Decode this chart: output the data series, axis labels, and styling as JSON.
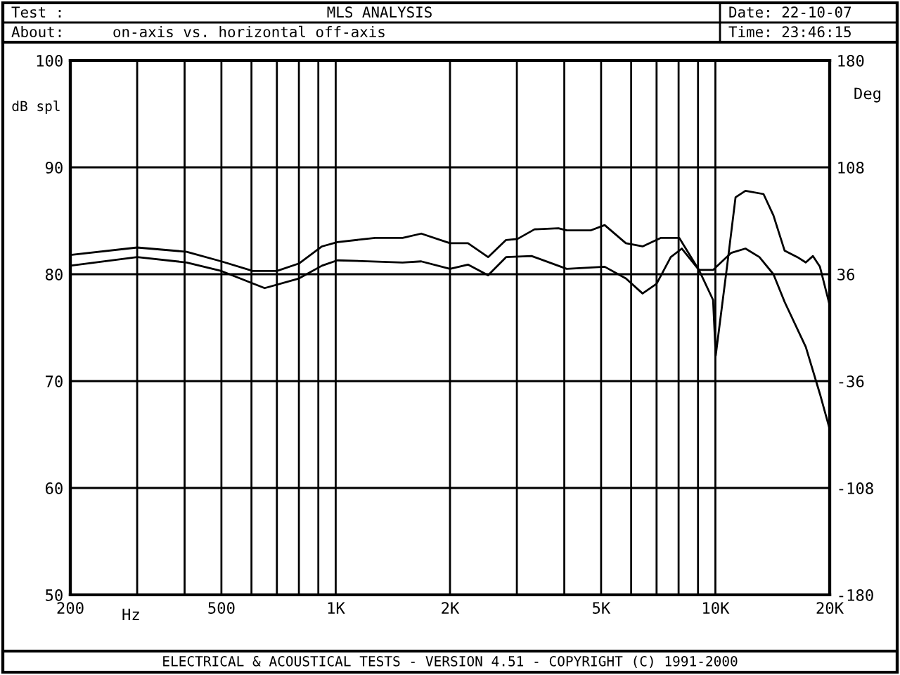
{
  "chart_data": {
    "type": "line",
    "title": "MLS ANALYSIS",
    "subtitle": "on-axis vs. horizontal off-axis",
    "annotations": [
      "Test :",
      "About:",
      "Date: 22-10-07",
      "Time: 23:46:15",
      "ELECTRICAL & ACOUSTICAL TESTS - VERSION 4.51 - COPYRIGHT (C) 1991-2000"
    ],
    "xlabel": "Hz",
    "ylabel": "dB spl",
    "y2label": "Deg",
    "log": "x",
    "grid": true,
    "marker": "none",
    "line_style": "solid",
    "xlim": [
      200,
      20000
    ],
    "xticks": [
      200,
      {
        "value": 300,
        "label": null
      },
      {
        "value": 400,
        "label": null
      },
      500,
      {
        "value": 600,
        "label": null
      },
      {
        "value": 700,
        "label": null
      },
      {
        "value": 800,
        "label": null
      },
      {
        "value": 900,
        "label": null
      },
      {
        "value": 1000,
        "label": "1K"
      },
      {
        "value": 2000,
        "label": "2K"
      },
      {
        "value": 3000,
        "label": null
      },
      {
        "value": 4000,
        "label": null
      },
      {
        "value": 5000,
        "label": "5K"
      },
      {
        "value": 6000,
        "label": null
      },
      {
        "value": 7000,
        "label": null
      },
      {
        "value": 8000,
        "label": null
      },
      {
        "value": 9000,
        "label": null
      },
      {
        "value": 10000,
        "label": "10K"
      },
      {
        "value": 20000,
        "label": "20K"
      }
    ],
    "ylim": [
      50,
      100
    ],
    "yticks": [
      50,
      60,
      70,
      80,
      90,
      100
    ],
    "y2lim": [
      -180,
      180
    ],
    "y2ticks": [
      -180,
      -108,
      -36,
      36,
      108,
      180
    ],
    "series": [
      {
        "color": "#000000",
        "x": [
          200,
          300,
          405,
          500,
          605,
          700,
          800,
          920,
          1010,
          1270,
          1500,
          1680,
          2000,
          2230,
          2520,
          2810,
          3010,
          3340,
          3860,
          4060,
          4690,
          5110,
          5810,
          6430,
          7190,
          8030,
          9050,
          9860,
          10020,
          10730,
          11300,
          12000,
          13390,
          14220,
          15220,
          16440,
          17300,
          18070,
          18850,
          20000
        ],
        "values": [
          81.8,
          82.5,
          82.1,
          81.2,
          80.3,
          80.3,
          81.0,
          82.6,
          83.0,
          83.4,
          83.4,
          83.8,
          82.9,
          82.9,
          81.6,
          83.2,
          83.3,
          84.2,
          84.3,
          84.1,
          84.1,
          84.6,
          82.9,
          82.6,
          83.4,
          83.4,
          80.4,
          77.6,
          72.4,
          80.7,
          87.2,
          87.8,
          87.5,
          85.5,
          82.2,
          81.6,
          81.1,
          81.7,
          80.7,
          77.1
        ]
      },
      {
        "color": "#000000",
        "x": [
          200,
          300,
          405,
          500,
          650,
          800,
          920,
          1010,
          1500,
          1680,
          2000,
          2230,
          2520,
          2810,
          3280,
          4060,
          5110,
          5810,
          6430,
          7000,
          7630,
          8160,
          9050,
          9860,
          11010,
          12000,
          13060,
          14220,
          15220,
          17300,
          18850,
          20000
        ],
        "values": [
          80.8,
          81.6,
          81.1,
          80.3,
          78.7,
          79.6,
          80.8,
          81.3,
          81.1,
          81.2,
          80.5,
          80.9,
          79.9,
          81.6,
          81.7,
          80.5,
          80.7,
          79.6,
          78.2,
          79.1,
          81.6,
          82.4,
          80.4,
          80.4,
          82.0,
          82.4,
          81.6,
          80.0,
          77.4,
          73.2,
          68.8,
          65.5
        ]
      }
    ]
  }
}
